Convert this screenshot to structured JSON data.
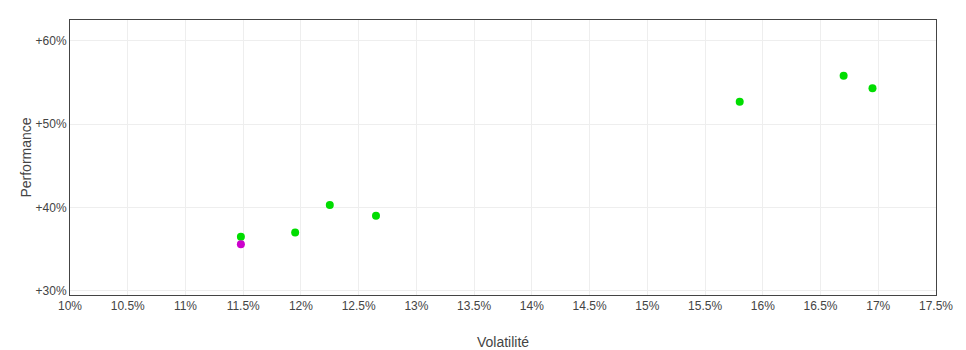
{
  "chart_data": {
    "type": "scatter",
    "xlabel": "Volatilité",
    "ylabel": "Performance",
    "x": [
      0.1148,
      0.1148,
      0.1195,
      0.1225,
      0.1265,
      0.158,
      0.167,
      0.1695
    ],
    "values": [
      0.365,
      0.356,
      0.37,
      0.403,
      0.39,
      0.527,
      0.558,
      0.543
    ],
    "colors": [
      "#00dd00",
      "#cc00cc",
      "#00dd00",
      "#00dd00",
      "#00dd00",
      "#00dd00",
      "#00dd00",
      "#00dd00"
    ],
    "xlim": [
      0.1,
      0.175
    ],
    "ylim": [
      0.295,
      0.625
    ],
    "xticks": [
      {
        "value": 0.1,
        "label": "10%"
      },
      {
        "value": 0.105,
        "label": "10.5%"
      },
      {
        "value": 0.11,
        "label": "11%"
      },
      {
        "value": 0.115,
        "label": "11.5%"
      },
      {
        "value": 0.12,
        "label": "12%"
      },
      {
        "value": 0.125,
        "label": "12.5%"
      },
      {
        "value": 0.13,
        "label": "13%"
      },
      {
        "value": 0.135,
        "label": "13.5%"
      },
      {
        "value": 0.14,
        "label": "14%"
      },
      {
        "value": 0.145,
        "label": "14.5%"
      },
      {
        "value": 0.15,
        "label": "15%"
      },
      {
        "value": 0.155,
        "label": "15.5%"
      },
      {
        "value": 0.16,
        "label": "16%"
      },
      {
        "value": 0.165,
        "label": "16.5%"
      },
      {
        "value": 0.17,
        "label": "17%"
      },
      {
        "value": 0.175,
        "label": "17.5%"
      }
    ],
    "yticks": [
      {
        "value": 0.3,
        "label": "+30%"
      },
      {
        "value": 0.4,
        "label": "+40%"
      },
      {
        "value": 0.5,
        "label": "+50%"
      },
      {
        "value": 0.6,
        "label": "+60%"
      }
    ],
    "grid": true
  }
}
